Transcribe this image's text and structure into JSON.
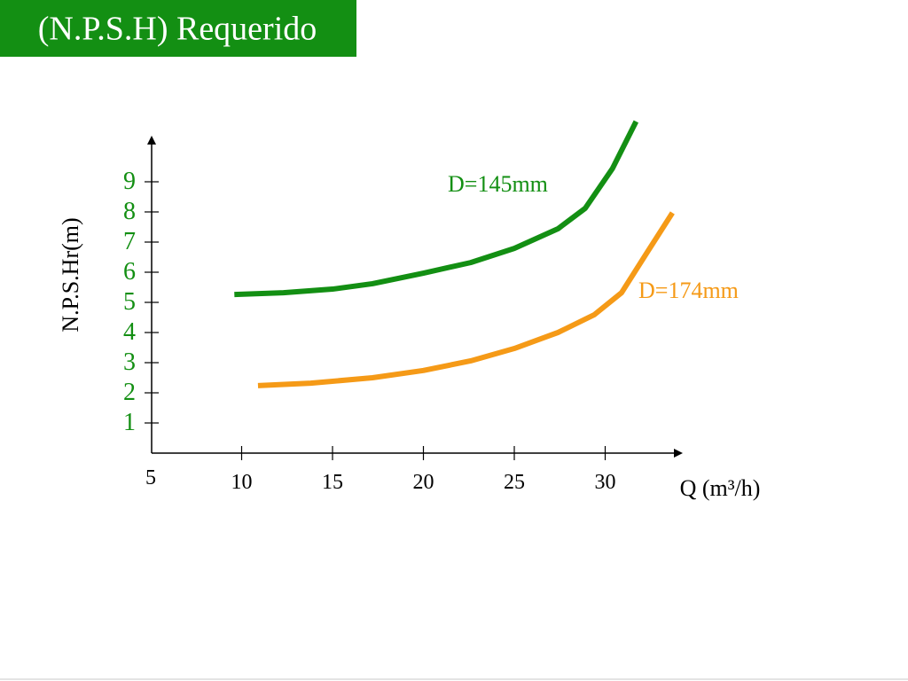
{
  "chart_data": {
    "type": "line",
    "title": "(N.P.S.H) Requerido",
    "x_label": "Q (m³/h)",
    "y_label": "N.P.S.Hr(m)",
    "xlim": [
      5,
      34.2
    ],
    "ylim": [
      0,
      10.5
    ],
    "xticks": [
      5,
      10,
      15,
      20,
      25,
      30
    ],
    "yticks": [
      1,
      2,
      3,
      4,
      5,
      6,
      7,
      8,
      9
    ],
    "series": [
      {
        "name": "D=145mm",
        "color": "#138f13",
        "x": [
          9.6,
          12.3,
          15,
          17.2,
          20,
          22.6,
          25,
          27.4,
          28.9,
          30.4,
          31.7
        ],
        "values": [
          5.26,
          5.32,
          5.44,
          5.62,
          5.97,
          6.32,
          6.79,
          7.44,
          8.12,
          9.44,
          11.0
        ]
      },
      {
        "name": "D=174mm",
        "color": "#f59a17",
        "x": [
          10.9,
          13.8,
          17.2,
          20,
          22.6,
          25,
          27.4,
          29.4,
          30.9,
          32.3,
          33.7
        ],
        "values": [
          2.24,
          2.32,
          2.5,
          2.74,
          3.06,
          3.47,
          4.0,
          4.59,
          5.32,
          6.65,
          7.97
        ]
      }
    ]
  }
}
